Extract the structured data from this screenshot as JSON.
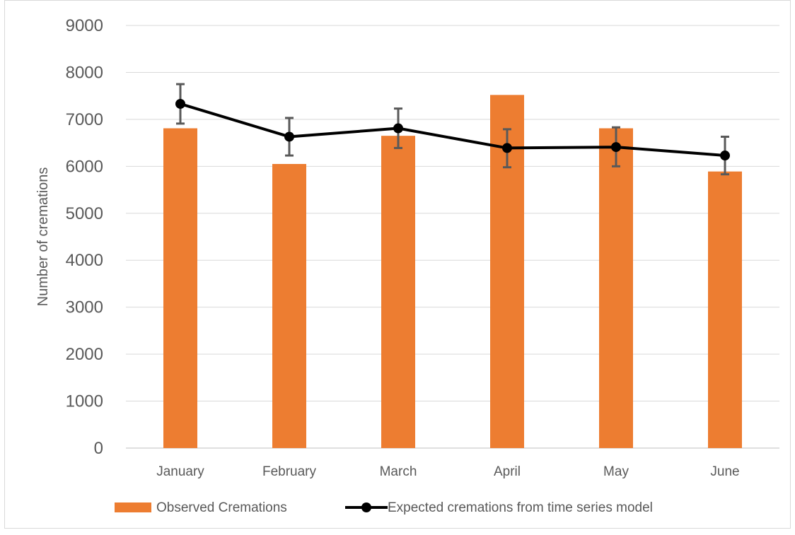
{
  "chart_data": {
    "type": "bar",
    "categories": [
      "January",
      "February",
      "March",
      "April",
      "May",
      "June"
    ],
    "ylabel": "Number of cremations",
    "xlabel": "",
    "ylim": [
      0,
      9000
    ],
    "yticks": [
      0,
      1000,
      2000,
      3000,
      4000,
      5000,
      6000,
      7000,
      8000,
      9000
    ],
    "grid": true,
    "legend_position": "bottom",
    "series": [
      {
        "name": "Observed Cremations",
        "type": "bar",
        "color": "#ED7D31",
        "values": [
          6810,
          6050,
          6650,
          7520,
          6810,
          5890
        ]
      },
      {
        "name": "Expected cremations from time series model",
        "type": "line",
        "color": "#000000",
        "values": [
          7330,
          6630,
          6810,
          6390,
          6410,
          6230
        ],
        "error_low": [
          6910,
          6230,
          6390,
          5980,
          6000,
          5830
        ],
        "error_high": [
          7750,
          7030,
          7230,
          6790,
          6830,
          6630
        ],
        "error_bar_color": "#595959"
      }
    ]
  }
}
